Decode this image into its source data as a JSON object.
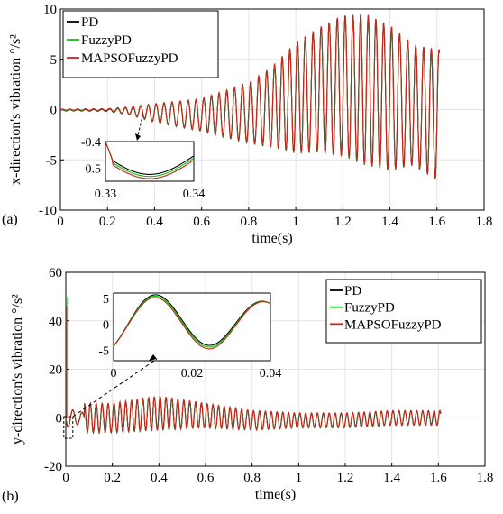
{
  "chart_data": [
    {
      "panel_label": "(a)",
      "type": "line",
      "xlabel": "time(s)",
      "ylabel": "x-direction's vibration  °/s²",
      "xlim": [
        0,
        1.8
      ],
      "ylim": [
        -10,
        10
      ],
      "xticks": [
        "0",
        "0.2",
        "0.4",
        "0.6",
        "0.8",
        "1",
        "1.2",
        "1.4",
        "1.6",
        "1.8"
      ],
      "yticks": [
        "-10",
        "-5",
        "0",
        "5",
        "10"
      ],
      "grid": true,
      "legend_position": "top-left",
      "series": [
        {
          "name": "PD",
          "color": "#000000"
        },
        {
          "name": "FuzzyPD",
          "color": "#00cc00"
        },
        {
          "name": "MAPSOFuzzyPD",
          "color": "#cc2222"
        }
      ],
      "signal": {
        "x": [
          0,
          0.2,
          0.3,
          0.4,
          0.6,
          0.8,
          0.9,
          1.0,
          1.1,
          1.2,
          1.3,
          1.4,
          1.5,
          1.6
        ],
        "envelope": [
          0.05,
          0.1,
          0.4,
          0.9,
          1.6,
          3.0,
          4.0,
          5.5,
          6.2,
          7.0,
          7.5,
          7.2,
          6.0,
          6.5
        ],
        "offset": [
          0,
          0,
          -0.1,
          -0.3,
          -0.5,
          -0.3,
          0.3,
          1.2,
          2.0,
          2.4,
          2.0,
          1.2,
          0.5,
          -0.5
        ]
      },
      "inset": {
        "xlim": [
          0.33,
          0.34
        ],
        "ylim": [
          -0.55,
          -0.4
        ],
        "xticks": [
          "0.33",
          "0.34"
        ],
        "yticks": [
          "-0.4",
          "-0.5"
        ],
        "source_point": [
          0.35,
          -0.3
        ]
      }
    },
    {
      "panel_label": "(b)",
      "type": "line",
      "xlabel": "time(s)",
      "ylabel": "y-direction's vibration  °/s²",
      "xlim": [
        0,
        1.8
      ],
      "ylim": [
        -20,
        60
      ],
      "xticks": [
        "0",
        "0.2",
        "0.4",
        "0.6",
        "0.8",
        "1",
        "1.2",
        "1.4",
        "1.6",
        "1.8"
      ],
      "yticks": [
        "-20",
        "0",
        "20",
        "40",
        "60"
      ],
      "grid": true,
      "legend_position": "top-right",
      "series": [
        {
          "name": "PD",
          "color": "#000000"
        },
        {
          "name": "FuzzyPD",
          "color": "#00cc00"
        },
        {
          "name": "MAPSOFuzzyPD",
          "color": "#cc2222"
        }
      ],
      "spikes": [
        {
          "series": "FuzzyPD",
          "x": 0.003,
          "y": 50
        },
        {
          "series": "MAPSOFuzzyPD",
          "x": 0.003,
          "y": 46
        }
      ],
      "signal": {
        "x": [
          0,
          0.2,
          0.4,
          0.6,
          0.8,
          1.0,
          1.2,
          1.4,
          1.6
        ],
        "envelope": [
          6,
          6,
          7,
          5,
          4,
          3,
          3,
          3,
          3
        ],
        "offset": [
          0,
          0,
          2,
          1,
          -1,
          -1,
          -1,
          0,
          0
        ]
      },
      "inset": {
        "xlim": [
          0,
          0.04
        ],
        "ylim": [
          -7,
          6
        ],
        "xticks": [
          "0",
          "0.02",
          "0.04"
        ],
        "yticks": [
          "5",
          "0",
          "-5"
        ],
        "source_point": [
          0.003,
          -4
        ]
      }
    }
  ]
}
